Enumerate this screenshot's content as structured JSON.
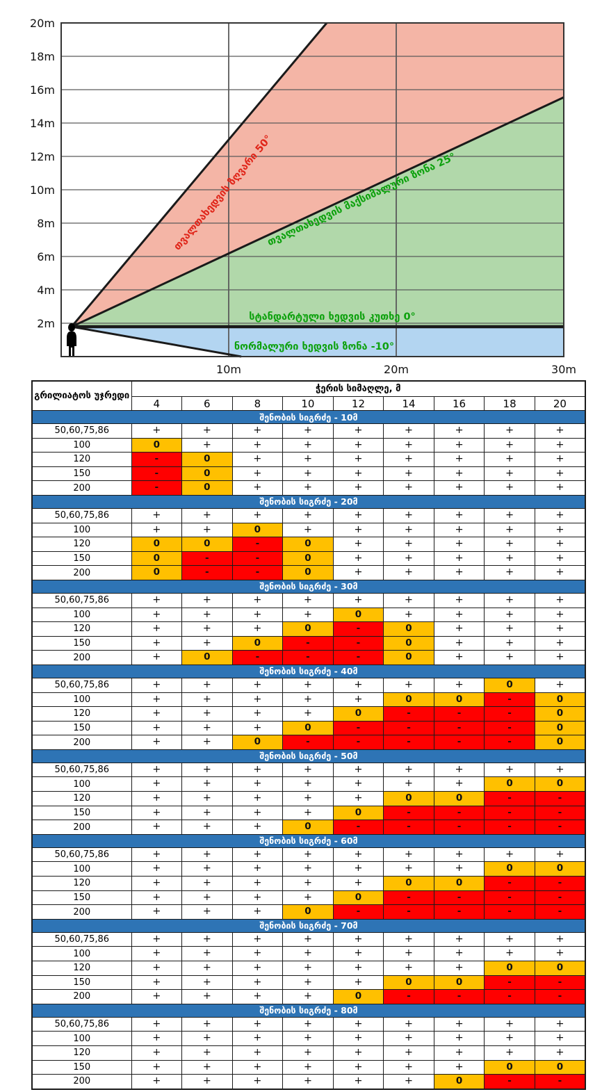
{
  "chart_data": [
    {
      "type": "area",
      "title": "Viewing angle zones diagram",
      "x_unit": "m",
      "y_unit": "m",
      "xlim": [
        0,
        30
      ],
      "ylim": [
        0,
        20
      ],
      "x_tick_labels": [
        "10m",
        "20m",
        "30m"
      ],
      "y_tick_labels": [
        "20m",
        "18m",
        "16m",
        "14m",
        "12m",
        "10m",
        "8m",
        "6m",
        "4m",
        "2m"
      ],
      "grid": true,
      "eye_height_m": 1.8,
      "zones": [
        {
          "label": "თვალთახედვის ზღვარი 50°",
          "angle_deg": 50,
          "fill": "#F4B5A6",
          "label_color": "#E02519"
        },
        {
          "label": "თვალთახედვის მაქსიმალური ზონა 25°",
          "angle_deg": 25,
          "fill": "#B1D8AA",
          "label_color": "#0DA10D"
        },
        {
          "label": "სტანდარტული ხედვის კუთხე 0°",
          "angle_deg": 0,
          "fill": "#1a1a1a",
          "label_color": "#0DA10D"
        },
        {
          "label": "ნორმალური ხედვის ზონა -10°",
          "angle_deg": -10,
          "fill": "#B3D5F1",
          "label_color": "#0DA10D"
        }
      ]
    },
    {
      "type": "table",
      "corner_header": "გრილიატოს უჯრედი",
      "span_header": "ჭერის სიმაღლე, მ",
      "column_headers": [
        "4",
        "6",
        "8",
        "10",
        "12",
        "14",
        "16",
        "18",
        "20"
      ],
      "row_labels": [
        "50,60,75,86",
        "100",
        "120",
        "150",
        "200"
      ],
      "legend_colors": {
        "plus": "#FFFFFF",
        "zero": "#FFC000",
        "minus": "#FF0000",
        "banner": "#2E74B5"
      },
      "sections": [
        {
          "title": "შენობის სიგრძე - 10მ",
          "rows": [
            [
              "+",
              "+",
              "+",
              "+",
              "+",
              "+",
              "+",
              "+",
              "+"
            ],
            [
              "0",
              "+",
              "+",
              "+",
              "+",
              "+",
              "+",
              "+",
              "+"
            ],
            [
              "-",
              "0",
              "+",
              "+",
              "+",
              "+",
              "+",
              "+",
              "+"
            ],
            [
              "-",
              "0",
              "+",
              "+",
              "+",
              "+",
              "+",
              "+",
              "+"
            ],
            [
              "-",
              "0",
              "+",
              "+",
              "+",
              "+",
              "+",
              "+",
              "+"
            ]
          ]
        },
        {
          "title": "შენობის სიგრძე - 20მ",
          "rows": [
            [
              "+",
              "+",
              "+",
              "+",
              "+",
              "+",
              "+",
              "+",
              "+"
            ],
            [
              "+",
              "+",
              "0",
              "+",
              "+",
              "+",
              "+",
              "+",
              "+"
            ],
            [
              "0",
              "0",
              "-",
              "0",
              "+",
              "+",
              "+",
              "+",
              "+"
            ],
            [
              "0",
              "-",
              "-",
              "0",
              "+",
              "+",
              "+",
              "+",
              "+"
            ],
            [
              "0",
              "-",
              "-",
              "0",
              "+",
              "+",
              "+",
              "+",
              "+"
            ]
          ]
        },
        {
          "title": "შენობის სიგრძე - 30მ",
          "rows": [
            [
              "+",
              "+",
              "+",
              "+",
              "+",
              "+",
              "+",
              "+",
              "+"
            ],
            [
              "+",
              "+",
              "+",
              "+",
              "0",
              "+",
              "+",
              "+",
              "+"
            ],
            [
              "+",
              "+",
              "+",
              "0",
              "-",
              "0",
              "+",
              "+",
              "+"
            ],
            [
              "+",
              "+",
              "0",
              "-",
              "-",
              "0",
              "+",
              "+",
              "+"
            ],
            [
              "+",
              "0",
              "-",
              "-",
              "-",
              "0",
              "+",
              "+",
              "+"
            ]
          ]
        },
        {
          "title": "შენობის სიგრძე - 40მ",
          "rows": [
            [
              "+",
              "+",
              "+",
              "+",
              "+",
              "+",
              "+",
              "0",
              "+"
            ],
            [
              "+",
              "+",
              "+",
              "+",
              "+",
              "0",
              "0",
              "-",
              "0"
            ],
            [
              "+",
              "+",
              "+",
              "+",
              "0",
              "-",
              "-",
              "-",
              "0"
            ],
            [
              "+",
              "+",
              "+",
              "0",
              "-",
              "-",
              "-",
              "-",
              "0"
            ],
            [
              "+",
              "+",
              "0",
              "-",
              "-",
              "-",
              "-",
              "-",
              "0"
            ]
          ]
        },
        {
          "title": "შენობის სიგრძე - 50მ",
          "rows": [
            [
              "+",
              "+",
              "+",
              "+",
              "+",
              "+",
              "+",
              "+",
              "+"
            ],
            [
              "+",
              "+",
              "+",
              "+",
              "+",
              "+",
              "+",
              "0",
              "0"
            ],
            [
              "+",
              "+",
              "+",
              "+",
              "+",
              "0",
              "0",
              "-",
              "-"
            ],
            [
              "+",
              "+",
              "+",
              "+",
              "0",
              "-",
              "-",
              "-",
              "-"
            ],
            [
              "+",
              "+",
              "+",
              "0",
              "-",
              "-",
              "-",
              "-",
              "-"
            ]
          ]
        },
        {
          "title": "შენობის სიგრძე - 60მ",
          "rows": [
            [
              "+",
              "+",
              "+",
              "+",
              "+",
              "+",
              "+",
              "+",
              "+"
            ],
            [
              "+",
              "+",
              "+",
              "+",
              "+",
              "+",
              "+",
              "0",
              "0"
            ],
            [
              "+",
              "+",
              "+",
              "+",
              "+",
              "0",
              "0",
              "-",
              "-"
            ],
            [
              "+",
              "+",
              "+",
              "+",
              "0",
              "-",
              "-",
              "-",
              "-"
            ],
            [
              "+",
              "+",
              "+",
              "0",
              "-",
              "-",
              "-",
              "-",
              "-"
            ]
          ]
        },
        {
          "title": "შენობის სიგრძე - 70მ",
          "rows": [
            [
              "+",
              "+",
              "+",
              "+",
              "+",
              "+",
              "+",
              "+",
              "+"
            ],
            [
              "+",
              "+",
              "+",
              "+",
              "+",
              "+",
              "+",
              "+",
              "+"
            ],
            [
              "+",
              "+",
              "+",
              "+",
              "+",
              "+",
              "+",
              "0",
              "0"
            ],
            [
              "+",
              "+",
              "+",
              "+",
              "+",
              "0",
              "0",
              "-",
              "-"
            ],
            [
              "+",
              "+",
              "+",
              "+",
              "0",
              "-",
              "-",
              "-",
              "-"
            ]
          ]
        },
        {
          "title": "შენობის სიგრძე - 80მ",
          "rows": [
            [
              "+",
              "+",
              "+",
              "+",
              "+",
              "+",
              "+",
              "+",
              "+"
            ],
            [
              "+",
              "+",
              "+",
              "+",
              "+",
              "+",
              "+",
              "+",
              "+"
            ],
            [
              "+",
              "+",
              "+",
              "+",
              "+",
              "+",
              "+",
              "+",
              "+"
            ],
            [
              "+",
              "+",
              "+",
              "+",
              "+",
              "+",
              "+",
              "0",
              "0"
            ],
            [
              "+",
              "+",
              "+",
              "+",
              "+",
              "+",
              "0",
              "-",
              "-"
            ]
          ]
        }
      ]
    }
  ]
}
